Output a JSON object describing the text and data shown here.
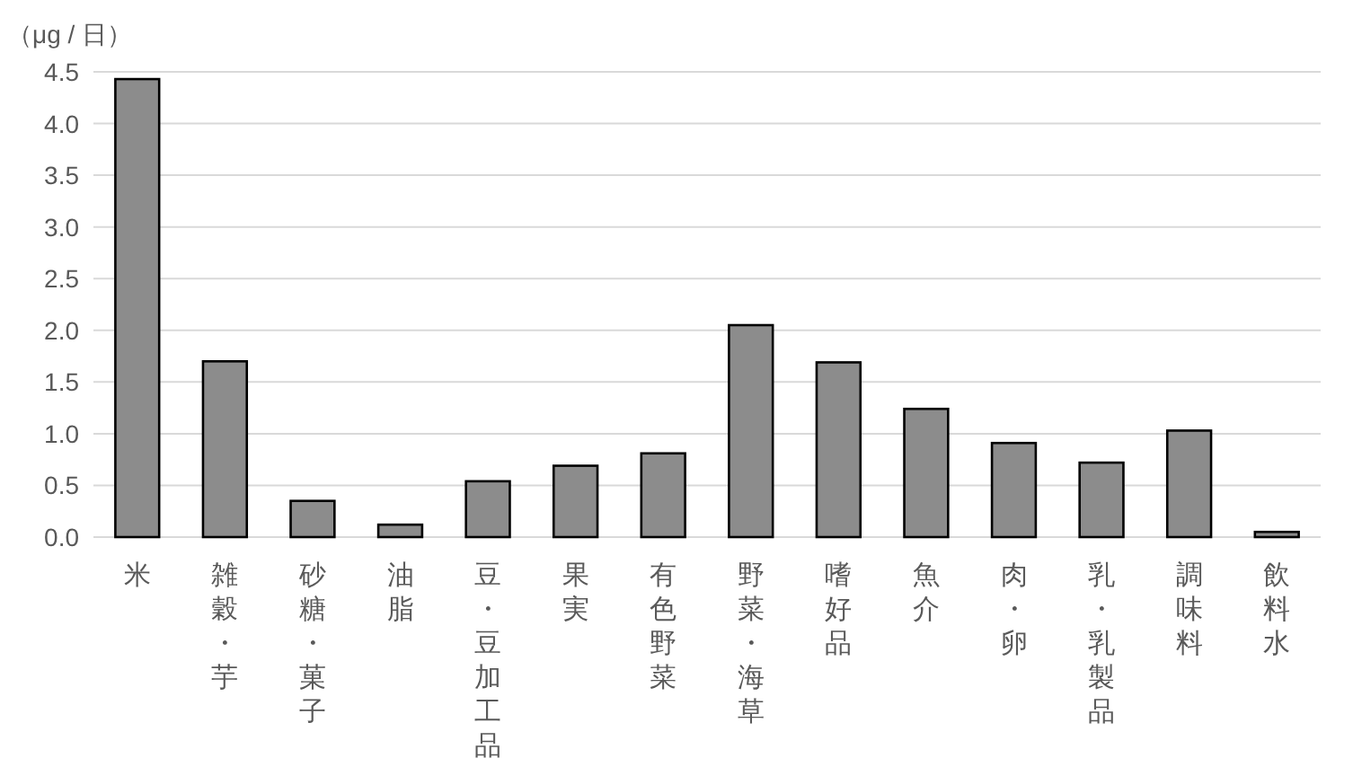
{
  "chart_data": {
    "type": "bar",
    "ylabel": "（μg / 日）",
    "categories": [
      "米",
      "雑穀・芋",
      "砂糖・菓子",
      "油脂",
      "豆・豆加工品",
      "果実",
      "有色野菜",
      "野菜・海草",
      "嗜好品",
      "魚介",
      "肉・卵",
      "乳・乳製品",
      "調味料",
      "飲料水"
    ],
    "values": [
      4.43,
      1.7,
      0.35,
      0.12,
      0.54,
      0.69,
      0.81,
      2.05,
      1.69,
      1.24,
      0.91,
      0.72,
      1.03,
      0.05
    ],
    "color": "#8c8c8c",
    "ylim": [
      0,
      4.5
    ],
    "yticks": [
      {
        "value": 0,
        "label": "0.0"
      },
      {
        "value": 0.5,
        "label": "0.5"
      },
      {
        "value": 1,
        "label": "1.0"
      },
      {
        "value": 1.5,
        "label": "1.5"
      },
      {
        "value": 2,
        "label": "2.0"
      },
      {
        "value": 2.5,
        "label": "2.5"
      },
      {
        "value": 3,
        "label": "3.0"
      },
      {
        "value": 3.5,
        "label": "3.5"
      },
      {
        "value": 4,
        "label": "4.0"
      },
      {
        "value": 4.5,
        "label": "4.5"
      }
    ],
    "grid": "y"
  }
}
